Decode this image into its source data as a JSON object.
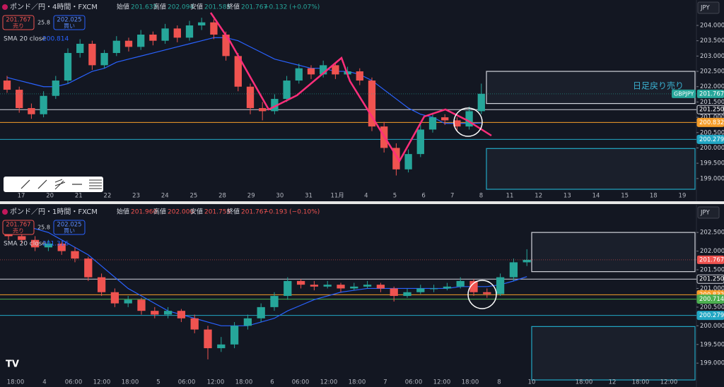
{
  "chart_data": [
    {
      "type": "candlestick",
      "title": "ポンド／円・4時間・FXCM",
      "stats": [
        {
          "label": "始値",
          "value": "201.635"
        },
        {
          "label": "高値",
          "value": "202.094"
        },
        {
          "label": "安値",
          "value": "201.585"
        },
        {
          "label": "終値",
          "value": "201.767"
        }
      ],
      "change": "+0.132 (+0.07%)",
      "change_color": "#26a69a",
      "sell": {
        "price": "201.767",
        "label": "売り"
      },
      "spread": "25.8",
      "buy": {
        "price": "202.025",
        "label": "買い"
      },
      "currency": "JPY",
      "indicator": {
        "name": "SMA 20 close",
        "value": "200.814",
        "color": "#2962ff",
        "values": [
          202.3,
          202.2,
          202.1,
          202.0,
          202.0,
          202.1,
          202.3,
          202.5,
          202.6,
          202.8,
          202.9,
          203.0,
          203.1,
          203.2,
          203.3,
          203.4,
          203.5,
          203.6,
          203.6,
          203.5,
          203.3,
          203.1,
          202.9,
          202.8,
          202.7,
          202.6,
          202.6,
          202.5,
          202.5,
          202.4,
          202.2,
          201.9,
          201.6,
          201.3,
          201.1,
          201.0,
          200.8,
          200.8,
          200.8,
          200.814
        ]
      },
      "up_color": "#26a69a",
      "down_color": "#ef5350",
      "ylim": [
        198.65,
        204.83
      ],
      "yticks": [
        {
          "value": 199,
          "label": "199.000"
        },
        {
          "value": 199.5,
          "label": "199.500"
        },
        {
          "value": 200,
          "label": "200.000"
        },
        {
          "value": 200.5,
          "label": "200.500"
        },
        {
          "value": 201,
          "label": "201.000"
        },
        {
          "value": 201.5,
          "label": "201.500"
        },
        {
          "value": 202,
          "label": "202.000"
        },
        {
          "value": 202.5,
          "label": "202.500"
        },
        {
          "value": 203,
          "label": "203.000"
        },
        {
          "value": 203.5,
          "label": "203.500"
        },
        {
          "value": 204,
          "label": "204.000"
        }
      ],
      "candles": [
        [
          202.2,
          202.35,
          201.8,
          201.9
        ],
        [
          201.9,
          202.0,
          201.15,
          201.3
        ],
        [
          201.3,
          201.45,
          200.95,
          201.1
        ],
        [
          201.1,
          201.85,
          201.0,
          201.7
        ],
        [
          201.7,
          202.35,
          201.6,
          202.2
        ],
        [
          202.2,
          203.25,
          202.1,
          203.1
        ],
        [
          203.1,
          203.55,
          202.95,
          203.4
        ],
        [
          203.4,
          203.5,
          202.55,
          202.7
        ],
        [
          202.7,
          203.2,
          202.6,
          203.1
        ],
        [
          203.1,
          203.65,
          203.0,
          203.5
        ],
        [
          203.5,
          203.6,
          203.15,
          203.3
        ],
        [
          203.3,
          203.85,
          203.2,
          203.7
        ],
        [
          203.7,
          203.8,
          203.35,
          203.5
        ],
        [
          203.5,
          204.05,
          203.4,
          203.9
        ],
        [
          203.9,
          204.0,
          203.45,
          203.6
        ],
        [
          203.6,
          204.15,
          203.5,
          204.0
        ],
        [
          204.0,
          204.25,
          203.85,
          204.1
        ],
        [
          204.1,
          204.2,
          203.55,
          203.7
        ],
        [
          203.7,
          203.8,
          202.85,
          203.0
        ],
        [
          203.0,
          203.1,
          201.85,
          202.0
        ],
        [
          202.0,
          202.1,
          201.1,
          201.3
        ],
        [
          201.3,
          201.5,
          200.9,
          201.2
        ],
        [
          201.2,
          201.75,
          201.1,
          201.6
        ],
        [
          201.6,
          202.35,
          201.5,
          202.2
        ],
        [
          202.2,
          202.75,
          202.1,
          202.6
        ],
        [
          202.6,
          202.7,
          202.25,
          202.4
        ],
        [
          202.4,
          202.85,
          202.3,
          202.7
        ],
        [
          202.7,
          202.8,
          202.25,
          202.4
        ],
        [
          202.4,
          202.65,
          202.3,
          202.5
        ],
        [
          202.5,
          202.6,
          202.05,
          202.2
        ],
        [
          202.2,
          202.3,
          200.55,
          200.7
        ],
        [
          200.7,
          200.85,
          199.85,
          200.0
        ],
        [
          200.0,
          200.15,
          199.1,
          199.3
        ],
        [
          199.3,
          199.95,
          199.2,
          199.8
        ],
        [
          199.8,
          200.75,
          199.7,
          200.6
        ],
        [
          200.6,
          201.15,
          200.5,
          201.0
        ],
        [
          201.0,
          201.1,
          200.75,
          200.9
        ],
        [
          200.9,
          201.0,
          200.55,
          200.7
        ],
        [
          200.7,
          201.35,
          200.6,
          201.2
        ],
        [
          201.2,
          202.1,
          201.1,
          201.767
        ]
      ],
      "levels": [
        {
          "value": 201.25,
          "label": "201.250",
          "color": "#d1d4dc"
        },
        {
          "value": 200.832,
          "label": "200.832",
          "color": "#f59d2a"
        },
        {
          "value": 200.279,
          "label": "200.279",
          "color": "#22a7c4"
        }
      ],
      "last_price": {
        "value": 201.767,
        "label": "201.767",
        "color": "#26a69a"
      },
      "symbol_tag": "GBPJPY",
      "zones": [
        {
          "top": 202.5,
          "bottom": 201.45
        },
        {
          "top": 199.98
        }
      ],
      "annotation": "日足戻り売り",
      "x_labels": [
        "17",
        "20",
        "21",
        "22",
        "23",
        "24",
        "25",
        "28",
        "29",
        "30",
        "31",
        "11月",
        "4",
        "5",
        "6",
        "7",
        "8",
        "11",
        "12",
        "13",
        "14",
        "15",
        "18",
        "19"
      ]
    },
    {
      "type": "candlestick",
      "title": "ポンド／円・1時間・FXCM",
      "stats": [
        {
          "label": "始値",
          "value": "201.960"
        },
        {
          "label": "高値",
          "value": "202.000"
        },
        {
          "label": "安値",
          "value": "201.755"
        },
        {
          "label": "終値",
          "value": "201.767"
        }
      ],
      "change": "−0.193 (−0.10%)",
      "change_color": "#ef5350",
      "sell": {
        "price": "201.767",
        "label": "売り"
      },
      "spread": "25.8",
      "buy": {
        "price": "202.025",
        "label": "買い"
      },
      "currency": "JPY",
      "indicator": {
        "name": "SMA 20 close",
        "value": "201.316",
        "color": "#2962ff",
        "values": [
          202.7,
          202.7,
          202.6,
          202.5,
          202.3,
          202.1,
          201.9,
          201.6,
          201.3,
          201.0,
          200.8,
          200.6,
          200.4,
          200.3,
          200.2,
          200.1,
          200.0,
          200.0,
          200.0,
          200.1,
          200.2,
          200.4,
          200.55,
          200.7,
          200.8,
          200.9,
          200.95,
          201.0,
          201.0,
          201.0,
          201.0,
          201.0,
          201.0,
          201.0,
          201.05,
          201.05,
          201.05,
          201.1,
          201.2,
          201.316
        ]
      },
      "up_color": "#26a69a",
      "down_color": "#ef5350",
      "ylim": [
        198.55,
        203.24
      ],
      "yticks": [
        {
          "value": 199,
          "label": "199.000"
        },
        {
          "value": 199.5,
          "label": "199.500"
        },
        {
          "value": 200,
          "label": "200.000"
        },
        {
          "value": 200.5,
          "label": "200.500"
        },
        {
          "value": 201,
          "label": "201.000"
        },
        {
          "value": 201.5,
          "label": "201.500"
        },
        {
          "value": 202,
          "label": "202.000"
        },
        {
          "value": 202.5,
          "label": "202.500"
        }
      ],
      "candles": [
        [
          202.5,
          202.6,
          202.3,
          202.4
        ],
        [
          202.4,
          202.5,
          202.2,
          202.3
        ],
        [
          202.3,
          202.4,
          202.0,
          202.1
        ],
        [
          202.1,
          202.3,
          202.0,
          202.2
        ],
        [
          202.2,
          202.25,
          201.9,
          202.0
        ],
        [
          202.0,
          202.1,
          201.7,
          201.8
        ],
        [
          201.8,
          201.85,
          201.2,
          201.3
        ],
        [
          201.3,
          201.4,
          200.8,
          200.9
        ],
        [
          200.9,
          201.0,
          200.5,
          200.6
        ],
        [
          200.6,
          200.8,
          200.5,
          200.7
        ],
        [
          200.7,
          200.75,
          200.3,
          200.4
        ],
        [
          200.4,
          200.5,
          200.2,
          200.3
        ],
        [
          200.3,
          200.5,
          200.2,
          200.4
        ],
        [
          200.4,
          200.45,
          200.1,
          200.2
        ],
        [
          200.2,
          200.3,
          199.8,
          199.9
        ],
        [
          199.9,
          200.0,
          199.1,
          199.4
        ],
        [
          199.4,
          199.7,
          199.3,
          199.5
        ],
        [
          199.5,
          200.1,
          199.4,
          200.0
        ],
        [
          200.0,
          200.3,
          199.9,
          200.2
        ],
        [
          200.2,
          200.6,
          200.1,
          200.5
        ],
        [
          200.5,
          200.9,
          200.4,
          200.8
        ],
        [
          200.8,
          201.3,
          200.7,
          201.2
        ],
        [
          201.2,
          201.25,
          201.0,
          201.1
        ],
        [
          201.1,
          201.2,
          200.95,
          201.05
        ],
        [
          201.05,
          201.2,
          201.0,
          201.1
        ],
        [
          201.1,
          201.15,
          200.9,
          201.0
        ],
        [
          201.0,
          201.15,
          200.95,
          201.05
        ],
        [
          201.05,
          201.2,
          201.0,
          201.1
        ],
        [
          201.1,
          201.15,
          200.9,
          201.0
        ],
        [
          201.0,
          201.05,
          200.65,
          200.8
        ],
        [
          200.8,
          201.0,
          200.75,
          200.9
        ],
        [
          200.9,
          201.1,
          200.85,
          201.0
        ],
        [
          201.0,
          201.1,
          200.9,
          201.0
        ],
        [
          201.0,
          201.15,
          200.95,
          201.05
        ],
        [
          201.05,
          201.3,
          201.0,
          201.2
        ],
        [
          201.2,
          201.25,
          200.8,
          200.9
        ],
        [
          200.9,
          201.0,
          200.75,
          200.85
        ],
        [
          200.85,
          201.4,
          200.8,
          201.3
        ],
        [
          201.3,
          201.8,
          201.2,
          201.7
        ],
        [
          201.7,
          202.05,
          201.6,
          201.767
        ]
      ],
      "levels": [
        {
          "value": 201.25,
          "label": "201.250",
          "color": "#d1d4dc"
        },
        {
          "value": 200.832,
          "label": "200.832",
          "color": "#f59d2a"
        },
        {
          "value": 200.714,
          "label": "200.714",
          "color": "#4caf50"
        },
        {
          "value": 200.279,
          "label": "200.279",
          "color": "#22a7c4"
        }
      ],
      "last_price": {
        "value": 201.767,
        "label": "201.767",
        "color": "#ef5350"
      },
      "zones": [
        {
          "top": 202.5,
          "bottom": 201.45
        },
        {
          "top": 199.98
        }
      ],
      "x_labels": [
        "18:00",
        "4",
        "06:00",
        "12:00",
        "18:00",
        "5",
        "06:00",
        "12:00",
        "18:00",
        "6",
        "06:00",
        "12:00",
        "18:00",
        "7",
        "06:00",
        "12:00",
        "18:00",
        "8",
        "10",
        "18:00",
        "12",
        "18:00",
        "12:00"
      ]
    }
  ]
}
